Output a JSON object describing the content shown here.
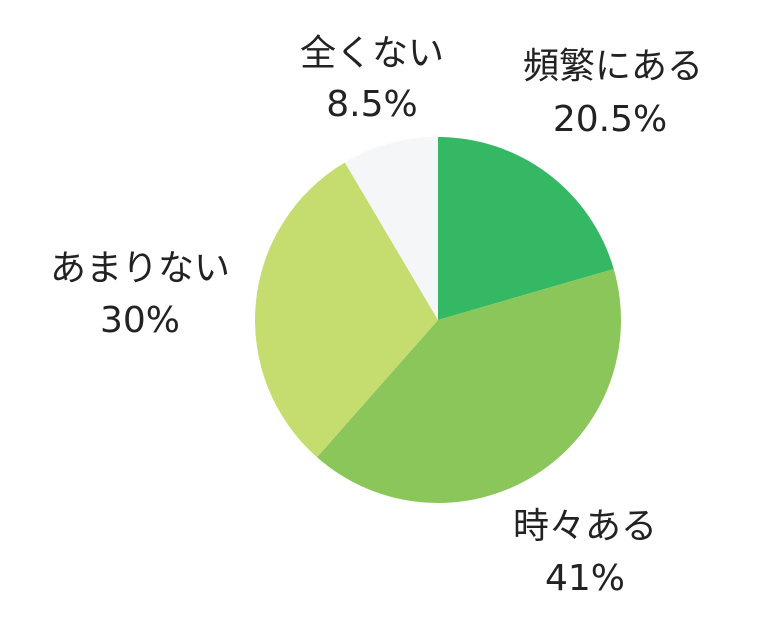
{
  "chart_data": {
    "type": "pie",
    "categories": [
      "頻繁にある",
      "時々ある",
      "あまりない",
      "全くない"
    ],
    "values": [
      20.5,
      41,
      30,
      8.5
    ],
    "value_labels": [
      "20.5%",
      "41%",
      "30%",
      "8.5%"
    ],
    "colors": [
      "#34b864",
      "#8bc65a",
      "#c5dc6e",
      "#f4f6f7"
    ]
  }
}
